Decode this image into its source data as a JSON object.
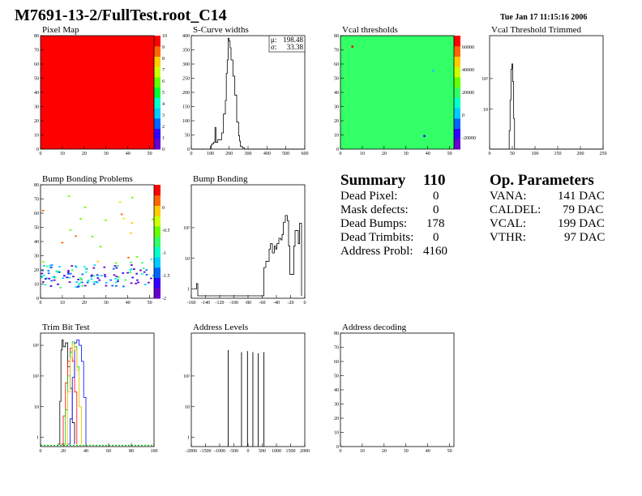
{
  "header": {
    "title": "M7691-13-2/FullTest.root_C14",
    "date": "Tue Jan 17 11:15:16 2006"
  },
  "summary": {
    "title": "Summary",
    "total": "110",
    "rows": [
      {
        "label": "Dead Pixel:",
        "value": "0"
      },
      {
        "label": "Mask defects:",
        "value": "0"
      },
      {
        "label": "Dead Bumps:",
        "value": "178"
      },
      {
        "label": "Dead Trimbits:",
        "value": "0"
      },
      {
        "label": "Address Probl:",
        "value": "4160"
      }
    ]
  },
  "op_params": {
    "title": "Op. Parameters",
    "rows": [
      {
        "label": "VANA:",
        "value": "141 DAC"
      },
      {
        "label": "CALDEL:",
        "value": "79 DAC"
      },
      {
        "label": "VCAL:",
        "value": "199 DAC"
      },
      {
        "label": "VTHR:",
        "value": "97 DAC"
      }
    ]
  },
  "chart_data": [
    {
      "id": "pixel_map",
      "type": "heatmap",
      "title": "Pixel Map",
      "xlim": [
        0,
        52
      ],
      "ylim": [
        0,
        80
      ],
      "xticks": [
        "0",
        "10",
        "20",
        "30",
        "40",
        "50"
      ],
      "yticks": [
        "0",
        "10",
        "20",
        "30",
        "40",
        "50",
        "60",
        "70",
        "80"
      ],
      "fill": "#ff0000",
      "colorbar": {
        "ticks": [
          "0",
          "1",
          "2",
          "3",
          "4",
          "5",
          "6",
          "7",
          "8",
          "9",
          "10"
        ],
        "colors": [
          "#6600cc",
          "#3300ff",
          "#0066ff",
          "#00ccff",
          "#00ffcc",
          "#00ff33",
          "#66ff00",
          "#ccff00",
          "#ffcc00",
          "#ff6600",
          "#ff0000"
        ]
      }
    },
    {
      "id": "scurve_widths",
      "type": "line",
      "title": "S-Curve widths",
      "xlim": [
        0,
        600
      ],
      "ylim": [
        0,
        420
      ],
      "xticks": [
        "0",
        "100",
        "200",
        "300",
        "400",
        "500",
        "600"
      ],
      "yticks": [
        "0",
        "50",
        "100",
        "150",
        "200",
        "250",
        "300",
        "350",
        "400"
      ],
      "stats": [
        {
          "label": "μ:",
          "value": "198.48"
        },
        {
          "label": "σ:",
          "value": "33.38"
        }
      ],
      "x": [
        0,
        100,
        105,
        110,
        118,
        125,
        130,
        140,
        150,
        160,
        170,
        180,
        185,
        190,
        195,
        200,
        205,
        210,
        220,
        230,
        240,
        250,
        255,
        260,
        270,
        280,
        600
      ],
      "y": [
        0,
        0,
        15,
        20,
        25,
        80,
        25,
        35,
        35,
        60,
        130,
        180,
        280,
        330,
        410,
        400,
        375,
        330,
        270,
        200,
        100,
        50,
        30,
        10,
        5,
        0,
        0
      ]
    },
    {
      "id": "vcal_thresholds",
      "type": "heatmap",
      "title": "Vcal thresholds",
      "xlim": [
        0,
        52
      ],
      "ylim": [
        0,
        80
      ],
      "xticks": [
        "0",
        "10",
        "20",
        "30",
        "40",
        "50"
      ],
      "yticks": [
        "0",
        "10",
        "20",
        "30",
        "40",
        "50",
        "60",
        "70",
        "80"
      ],
      "fill": "#33ff66",
      "colorbar": {
        "ticks": [
          "-20000",
          "0",
          "20000",
          "40000",
          "60000"
        ],
        "range": [
          -30000,
          70000
        ],
        "colors": [
          "#6600cc",
          "#3300ff",
          "#0066ff",
          "#00ccff",
          "#00ffcc",
          "#33ff66",
          "#66ff00",
          "#ccff00",
          "#ffcc00",
          "#ff6600",
          "#ff0000"
        ]
      },
      "specks": [
        [
          5,
          73,
          "#ff0000"
        ],
        [
          42,
          56,
          "#00ccff"
        ],
        [
          38,
          10,
          "#3300ff"
        ]
      ]
    },
    {
      "id": "vcal_trimmed",
      "type": "line",
      "title": "Vcal Threshold Trimmed",
      "xlim": [
        0,
        255
      ],
      "yscale": "log",
      "xticks": [
        "0",
        "50",
        "100",
        "150",
        "200",
        "250"
      ],
      "yticks": [
        "10",
        "10²"
      ],
      "x": [
        0,
        42,
        44,
        46,
        48,
        50,
        52,
        54,
        56,
        255
      ],
      "y": [
        0,
        0,
        2,
        20,
        200,
        300,
        80,
        5,
        0,
        0
      ]
    },
    {
      "id": "bump_problems",
      "type": "heatmap",
      "title": "Bump Bonding Problems",
      "xlim": [
        0,
        52
      ],
      "ylim": [
        0,
        80
      ],
      "xticks": [
        "0",
        "10",
        "20",
        "30",
        "40",
        "50"
      ],
      "yticks": [
        "0",
        "10",
        "20",
        "30",
        "40",
        "50",
        "60",
        "70",
        "80"
      ],
      "colorbar": {
        "ticks": [
          "0",
          "-0.5",
          "-1",
          "-1.5",
          "-2"
        ],
        "range": [
          -2,
          0.5
        ],
        "colors": [
          "#6600cc",
          "#3300ff",
          "#0066ff",
          "#00ccff",
          "#00ffcc",
          "#33ff66",
          "#66ff00",
          "#ccff00",
          "#ffcc00",
          "#ff6600",
          "#ff0000"
        ]
      }
    },
    {
      "id": "bump_bonding",
      "type": "line",
      "title": "Bump Bonding",
      "xlim": [
        -170,
        5
      ],
      "yscale": "log",
      "xticks": [
        "-160",
        "-140",
        "-120",
        "-100",
        "-80",
        "-60",
        "-40",
        "-20",
        "0"
      ],
      "yticks": [
        "1",
        "10",
        "10²"
      ],
      "x": [
        -165,
        -163,
        -162,
        -160,
        -60,
        -58,
        -55,
        -50,
        -48,
        -45,
        -42,
        -40,
        -38,
        -35,
        -32,
        -30,
        -28,
        -25,
        -22,
        -20,
        -18,
        -15,
        -12,
        -10,
        -8,
        -5,
        -3,
        0
      ],
      "y": [
        1,
        1,
        1.5,
        0.6,
        0.6,
        5,
        8,
        20,
        30,
        15,
        25,
        20,
        30,
        45,
        40,
        60,
        150,
        250,
        170,
        25,
        3,
        3,
        25,
        80,
        80,
        30,
        140,
        0.6
      ]
    },
    {
      "id": "trim_bit_test",
      "type": "line",
      "title": "Trim Bit Test",
      "xlim": [
        0,
        100
      ],
      "yscale": "log",
      "xticks": [
        "0",
        "20",
        "40",
        "60",
        "80",
        "100"
      ],
      "yticks": [
        "1",
        "10",
        "10²",
        "10³"
      ],
      "series": [
        {
          "color": "#000000",
          "x": [
            15,
            17,
            18,
            19,
            20,
            22,
            24,
            26,
            28,
            30
          ],
          "y": [
            0.6,
            15,
            700,
            1500,
            900,
            1200,
            200,
            40,
            3,
            0.6
          ]
        },
        {
          "color": "#ff0000",
          "x": [
            18,
            20,
            22,
            24,
            26,
            28,
            30,
            32
          ],
          "y": [
            0.6,
            5,
            60,
            300,
            800,
            300,
            30,
            0.6
          ]
        },
        {
          "color": "#00cc00",
          "x": [
            20,
            22,
            24,
            26,
            28,
            30,
            32,
            34,
            36
          ],
          "y": [
            0.6,
            8,
            100,
            600,
            1300,
            900,
            200,
            10,
            0.6
          ]
        },
        {
          "color": "#0000ff",
          "x": [
            24,
            26,
            28,
            30,
            32,
            34,
            36,
            38,
            40
          ],
          "y": [
            0.6,
            4,
            90,
            1200,
            1500,
            1000,
            300,
            20,
            0.6
          ]
        },
        {
          "color": "#ffcc00",
          "x": [
            22,
            24,
            26,
            28,
            30,
            32,
            34,
            36
          ],
          "y": [
            0.6,
            30,
            400,
            1100,
            700,
            150,
            10,
            0.6
          ]
        }
      ]
    },
    {
      "id": "address_levels",
      "type": "bar",
      "title": "Address Levels",
      "xlim": [
        -2000,
        2000
      ],
      "yscale": "log",
      "xticks": [
        "-2000",
        "-1500",
        "-1000",
        "-500",
        "0",
        "500",
        "1000",
        "1500",
        "2000"
      ],
      "yticks": [
        "1",
        "10",
        "10²"
      ],
      "spikes": [
        [
          -700,
          700
        ],
        [
          -230,
          600
        ],
        [
          -20,
          650
        ],
        [
          170,
          600
        ],
        [
          360,
          550
        ],
        [
          560,
          600
        ]
      ]
    },
    {
      "id": "address_decoding",
      "type": "heatmap",
      "title": "Address decoding",
      "xlim": [
        0,
        52
      ],
      "ylim": [
        0,
        80
      ],
      "xticks": [
        "0",
        "10",
        "20",
        "30",
        "40",
        "50"
      ],
      "yticks": [
        "0",
        "10",
        "20",
        "30",
        "40",
        "50",
        "60",
        "70",
        "80"
      ]
    }
  ]
}
